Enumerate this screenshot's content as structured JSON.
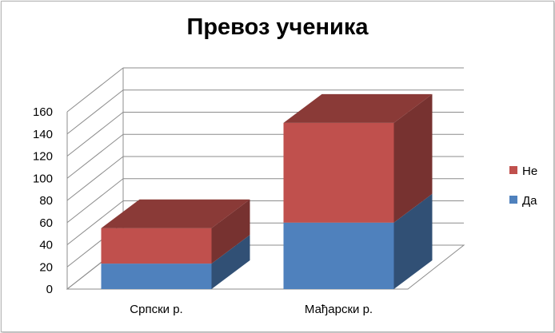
{
  "chart_data": {
    "type": "bar",
    "stacked": true,
    "three_d": true,
    "title": "Превоз ученика",
    "categories": [
      "Српски р.",
      "Мађарски р."
    ],
    "series": [
      {
        "name": "Да",
        "values": [
          23,
          60
        ],
        "color": "#4f81bd"
      },
      {
        "name": "Не",
        "values": [
          32,
          90
        ],
        "color": "#c0504d"
      }
    ],
    "ylim": [
      0,
      160
    ],
    "yticks": [
      "0",
      "20",
      "40",
      "60",
      "80",
      "100",
      "120",
      "140",
      "160"
    ],
    "grid": true,
    "legend_position": "right"
  }
}
